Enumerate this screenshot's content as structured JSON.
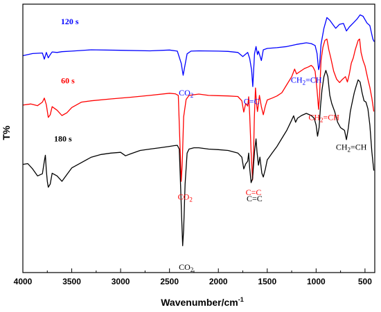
{
  "chart_data": {
    "type": "line",
    "xlabel": "Wavenumber/cm",
    "xlabel_sup": "-1",
    "ylabel": "T%",
    "xlim": [
      4000,
      400
    ],
    "x_reversed": true,
    "ylim": [
      0,
      100
    ],
    "y_ticks_shown": false,
    "x_ticks": [
      4000,
      3500,
      3000,
      2500,
      2000,
      1500,
      1000,
      500
    ],
    "x_tick_labels": [
      "4000",
      "3500",
      "3000",
      "2500",
      "2000",
      "1500",
      "1000",
      "500"
    ],
    "series": [
      {
        "name": "120 s",
        "color": "#0000ff",
        "points": [
          [
            4000,
            80.8
          ],
          [
            3900,
            81.6
          ],
          [
            3800,
            81.8
          ],
          [
            3780,
            79.5
          ],
          [
            3760,
            82.0
          ],
          [
            3740,
            80.0
          ],
          [
            3720,
            81.2
          ],
          [
            3700,
            82.2
          ],
          [
            3650,
            82.0
          ],
          [
            3600,
            82.3
          ],
          [
            3500,
            82.5
          ],
          [
            3300,
            83.0
          ],
          [
            3000,
            82.8
          ],
          [
            2700,
            82.6
          ],
          [
            2500,
            82.9
          ],
          [
            2420,
            82.5
          ],
          [
            2380,
            78.0
          ],
          [
            2360,
            73.5
          ],
          [
            2345,
            76.5
          ],
          [
            2320,
            81.5
          ],
          [
            2280,
            82.5
          ],
          [
            2200,
            82.6
          ],
          [
            2000,
            82.5
          ],
          [
            1900,
            82.4
          ],
          [
            1800,
            82.0
          ],
          [
            1750,
            80.5
          ],
          [
            1700,
            82.0
          ],
          [
            1680,
            79.8
          ],
          [
            1660,
            75.5
          ],
          [
            1648,
            69.3
          ],
          [
            1640,
            74.5
          ],
          [
            1630,
            81.5
          ],
          [
            1615,
            84.2
          ],
          [
            1600,
            81.2
          ],
          [
            1590,
            82.5
          ],
          [
            1560,
            79.0
          ],
          [
            1540,
            83.0
          ],
          [
            1500,
            83.5
          ],
          [
            1400,
            83.8
          ],
          [
            1300,
            84.2
          ],
          [
            1200,
            85.0
          ],
          [
            1100,
            85.6
          ],
          [
            1050,
            85.3
          ],
          [
            1010,
            84.6
          ],
          [
            990,
            81.6
          ],
          [
            975,
            75.6
          ],
          [
            965,
            77.0
          ],
          [
            950,
            85.0
          ],
          [
            920,
            91.0
          ],
          [
            890,
            95.0
          ],
          [
            860,
            94.0
          ],
          [
            830,
            92.5
          ],
          [
            800,
            91.0
          ],
          [
            760,
            92.5
          ],
          [
            720,
            92.8
          ],
          [
            690,
            90.0
          ],
          [
            660,
            91.5
          ],
          [
            620,
            93.0
          ],
          [
            580,
            94.5
          ],
          [
            550,
            96.0
          ],
          [
            520,
            95.5
          ],
          [
            480,
            93.0
          ],
          [
            450,
            92.0
          ],
          [
            420,
            87.0
          ],
          [
            405,
            86.0
          ]
        ]
      },
      {
        "name": "60 s",
        "color": "#ff0000",
        "points": [
          [
            4000,
            62.4
          ],
          [
            3920,
            62.8
          ],
          [
            3850,
            62.2
          ],
          [
            3800,
            63.5
          ],
          [
            3780,
            65.0
          ],
          [
            3760,
            62.5
          ],
          [
            3740,
            57.8
          ],
          [
            3720,
            58.8
          ],
          [
            3700,
            61.8
          ],
          [
            3650,
            60.5
          ],
          [
            3600,
            58.5
          ],
          [
            3550,
            59.5
          ],
          [
            3500,
            61.5
          ],
          [
            3400,
            63.5
          ],
          [
            3300,
            64.0
          ],
          [
            3100,
            64.7
          ],
          [
            2900,
            65.3
          ],
          [
            2700,
            66.0
          ],
          [
            2500,
            66.8
          ],
          [
            2440,
            66.6
          ],
          [
            2410,
            66.0
          ],
          [
            2395,
            50.0
          ],
          [
            2380,
            34.0
          ],
          [
            2370,
            40.0
          ],
          [
            2355,
            58.0
          ],
          [
            2330,
            64.5
          ],
          [
            2300,
            66.0
          ],
          [
            2200,
            66.5
          ],
          [
            2100,
            66.0
          ],
          [
            2000,
            65.9
          ],
          [
            1900,
            65.8
          ],
          [
            1800,
            65.6
          ],
          [
            1760,
            64.0
          ],
          [
            1740,
            59.8
          ],
          [
            1720,
            63.0
          ],
          [
            1700,
            62.0
          ],
          [
            1690,
            65.5
          ],
          [
            1680,
            59.0
          ],
          [
            1665,
            45.0
          ],
          [
            1650,
            34.5
          ],
          [
            1640,
            44.0
          ],
          [
            1632,
            58.0
          ],
          [
            1620,
            68.8
          ],
          [
            1610,
            63.0
          ],
          [
            1600,
            60.0
          ],
          [
            1580,
            66.0
          ],
          [
            1560,
            61.8
          ],
          [
            1540,
            58.8
          ],
          [
            1520,
            62.0
          ],
          [
            1500,
            64.3
          ],
          [
            1450,
            65.0
          ],
          [
            1400,
            65.8
          ],
          [
            1350,
            67.0
          ],
          [
            1300,
            70.0
          ],
          [
            1250,
            73.0
          ],
          [
            1220,
            75.8
          ],
          [
            1200,
            74.0
          ],
          [
            1180,
            74.5
          ],
          [
            1120,
            76.0
          ],
          [
            1080,
            76.6
          ],
          [
            1050,
            77.2
          ],
          [
            1030,
            76.5
          ],
          [
            1010,
            75.0
          ],
          [
            990,
            68.0
          ],
          [
            975,
            60.8
          ],
          [
            965,
            66.0
          ],
          [
            950,
            79.0
          ],
          [
            930,
            84.0
          ],
          [
            910,
            86.5
          ],
          [
            890,
            87.0
          ],
          [
            870,
            83.0
          ],
          [
            850,
            80.0
          ],
          [
            820,
            75.0
          ],
          [
            790,
            72.0
          ],
          [
            760,
            70.8
          ],
          [
            730,
            72.0
          ],
          [
            700,
            73.0
          ],
          [
            680,
            71.0
          ],
          [
            660,
            74.0
          ],
          [
            640,
            78.0
          ],
          [
            620,
            80.0
          ],
          [
            600,
            83.0
          ],
          [
            570,
            86.5
          ],
          [
            555,
            87.0
          ],
          [
            540,
            82.0
          ],
          [
            520,
            79.0
          ],
          [
            500,
            77.0
          ],
          [
            470,
            72.0
          ],
          [
            450,
            69.0
          ],
          [
            430,
            65.0
          ],
          [
            410,
            60.0
          ]
        ]
      },
      {
        "name": "180 s",
        "color": "#000000",
        "points": [
          [
            4000,
            40.3
          ],
          [
            3950,
            40.6
          ],
          [
            3900,
            38.6
          ],
          [
            3850,
            36.0
          ],
          [
            3800,
            36.8
          ],
          [
            3780,
            41.5
          ],
          [
            3770,
            43.7
          ],
          [
            3760,
            38.0
          ],
          [
            3750,
            34.0
          ],
          [
            3740,
            31.8
          ],
          [
            3720,
            33.0
          ],
          [
            3700,
            37.0
          ],
          [
            3650,
            36.0
          ],
          [
            3600,
            34.0
          ],
          [
            3550,
            36.5
          ],
          [
            3500,
            39.0
          ],
          [
            3400,
            41.0
          ],
          [
            3300,
            43.0
          ],
          [
            3200,
            44.0
          ],
          [
            3100,
            44.5
          ],
          [
            3000,
            44.8
          ],
          [
            2950,
            43.5
          ],
          [
            2900,
            44.2
          ],
          [
            2800,
            45.5
          ],
          [
            2700,
            46.0
          ],
          [
            2600,
            46.5
          ],
          [
            2500,
            47.0
          ],
          [
            2450,
            47.3
          ],
          [
            2420,
            47.4
          ],
          [
            2400,
            46.0
          ],
          [
            2390,
            36.0
          ],
          [
            2375,
            20.0
          ],
          [
            2365,
            10.0
          ],
          [
            2355,
            16.0
          ],
          [
            2340,
            33.0
          ],
          [
            2320,
            44.5
          ],
          [
            2300,
            46.0
          ],
          [
            2250,
            46.5
          ],
          [
            2200,
            46.5
          ],
          [
            2100,
            46.0
          ],
          [
            2000,
            45.8
          ],
          [
            1900,
            45.5
          ],
          [
            1800,
            44.5
          ],
          [
            1760,
            43.0
          ],
          [
            1740,
            38.6
          ],
          [
            1720,
            40.5
          ],
          [
            1700,
            41.5
          ],
          [
            1690,
            44.5
          ],
          [
            1680,
            39.0
          ],
          [
            1665,
            33.5
          ],
          [
            1650,
            35.0
          ],
          [
            1640,
            40.0
          ],
          [
            1630,
            45.0
          ],
          [
            1615,
            49.8
          ],
          [
            1605,
            45.0
          ],
          [
            1590,
            40.0
          ],
          [
            1575,
            43.0
          ],
          [
            1555,
            37.0
          ],
          [
            1540,
            35.6
          ],
          [
            1520,
            38.5
          ],
          [
            1500,
            42.0
          ],
          [
            1480,
            43.0
          ],
          [
            1450,
            44.5
          ],
          [
            1400,
            47.0
          ],
          [
            1350,
            50.0
          ],
          [
            1300,
            53.0
          ],
          [
            1260,
            56.0
          ],
          [
            1230,
            58.4
          ],
          [
            1210,
            56.0
          ],
          [
            1190,
            57.5
          ],
          [
            1150,
            58.5
          ],
          [
            1100,
            59.3
          ],
          [
            1050,
            58.5
          ],
          [
            1020,
            57.5
          ],
          [
            1000,
            55.0
          ],
          [
            985,
            50.8
          ],
          [
            970,
            54.0
          ],
          [
            955,
            62.0
          ],
          [
            940,
            68.0
          ],
          [
            920,
            73.0
          ],
          [
            900,
            75.3
          ],
          [
            880,
            73.0
          ],
          [
            860,
            66.0
          ],
          [
            840,
            63.0
          ],
          [
            810,
            60.0
          ],
          [
            780,
            56.0
          ],
          [
            750,
            54.0
          ],
          [
            730,
            53.5
          ],
          [
            710,
            53.0
          ],
          [
            690,
            49.5
          ],
          [
            670,
            54.0
          ],
          [
            650,
            60.0
          ],
          [
            630,
            63.5
          ],
          [
            610,
            67.0
          ],
          [
            590,
            69.5
          ],
          [
            570,
            71.8
          ],
          [
            550,
            71.0
          ],
          [
            530,
            67.0
          ],
          [
            510,
            64.0
          ],
          [
            490,
            63.5
          ],
          [
            470,
            61.0
          ],
          [
            450,
            55.0
          ],
          [
            430,
            45.0
          ],
          [
            410,
            38.0
          ]
        ]
      }
    ],
    "series_labels": [
      {
        "text": "120 s",
        "color": "#0000ff",
        "x": 3520,
        "y": 92.5
      },
      {
        "text": "60 s",
        "color": "#ff0000",
        "x": 3540,
        "y": 70.5
      },
      {
        "text": "180 s",
        "color": "#000000",
        "x": 3590,
        "y": 48.8
      }
    ],
    "annotations": [
      {
        "text": "CO",
        "sub": "2",
        "color": "#0000ff",
        "x": 2330,
        "y": 66.0
      },
      {
        "text": "C=C",
        "color": "#0000ff",
        "x": 1660,
        "y": 62.8
      },
      {
        "text": "CH",
        "sub": "2",
        "rest": "=CH",
        "color": "#0000ff",
        "x": 1100,
        "y": 70.8
      },
      {
        "text": "CO",
        "sub": "2",
        "color": "#ff0000",
        "x": 2340,
        "y": 27.2
      },
      {
        "text": "C=C",
        "color": "#ff0000",
        "x": 1640,
        "y": 28.9
      },
      {
        "text": "CH",
        "sub": "2",
        "rest": "=CH",
        "color": "#ff0000",
        "x": 920,
        "y": 56.8
      },
      {
        "text": "C=C",
        "color": "#000000",
        "x": 1630,
        "y": 26.6
      },
      {
        "text": "CH",
        "sub": "2",
        "rest": "=CH",
        "color": "#000000",
        "x": 640,
        "y": 45.8
      },
      {
        "text": "CO",
        "sub": "2",
        "color": "#000000",
        "x": 2330,
        "y": 1.0
      }
    ]
  }
}
